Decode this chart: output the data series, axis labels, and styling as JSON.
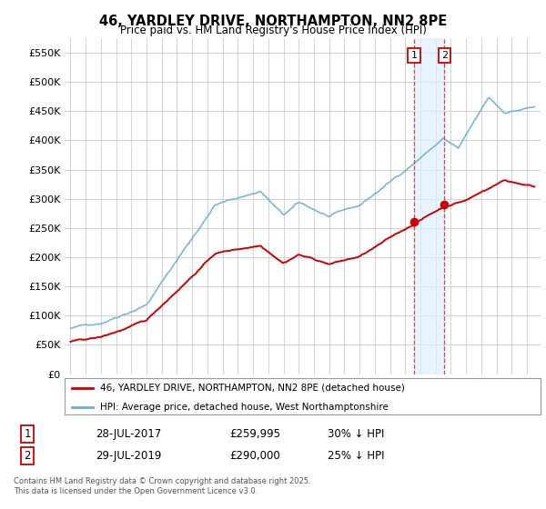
{
  "title": "46, YARDLEY DRIVE, NORTHAMPTON, NN2 8PE",
  "subtitle": "Price paid vs. HM Land Registry's House Price Index (HPI)",
  "legend_line1": "46, YARDLEY DRIVE, NORTHAMPTON, NN2 8PE (detached house)",
  "legend_line2": "HPI: Average price, detached house, West Northamptonshire",
  "marker1_date": "28-JUL-2017",
  "marker1_price": 259995,
  "marker1_hpi": "30% ↓ HPI",
  "marker2_date": "29-JUL-2019",
  "marker2_price": 290000,
  "marker2_hpi": "25% ↓ HPI",
  "footer": "Contains HM Land Registry data © Crown copyright and database right 2025.\nThis data is licensed under the Open Government Licence v3.0.",
  "hpi_color": "#6baed6",
  "price_color": "#cc0000",
  "marker_color": "#cc0000",
  "background_color": "#FFFFFF",
  "grid_color": "#CCCCCC",
  "shade_color": "#ddeeff",
  "ylim": [
    0,
    575000
  ],
  "yticks": [
    0,
    50000,
    100000,
    150000,
    200000,
    250000,
    300000,
    350000,
    400000,
    450000,
    500000,
    550000
  ]
}
